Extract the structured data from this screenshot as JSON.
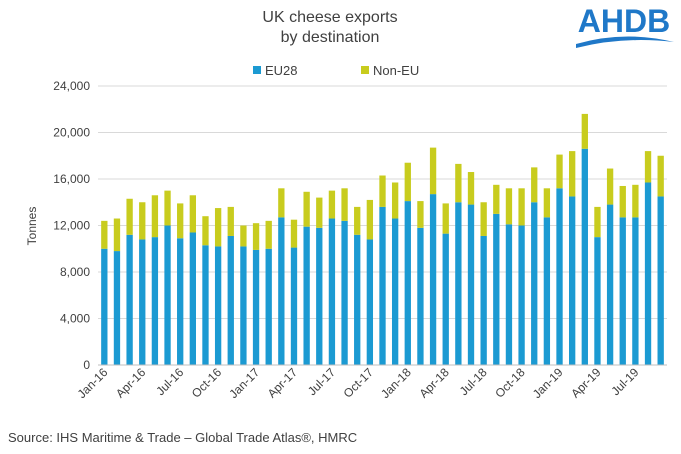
{
  "chart_data": {
    "type": "bar",
    "stacked": true,
    "title_line1": "UK cheese exports",
    "title_line2": "by destination",
    "ylabel": "Tonnes",
    "xlabel": "",
    "ylim": [
      0,
      24000
    ],
    "yticks": [
      0,
      4000,
      8000,
      12000,
      16000,
      20000,
      24000
    ],
    "ytick_labels": [
      "0",
      "4,000",
      "8,000",
      "12,000",
      "16,000",
      "20,000",
      "24,000"
    ],
    "legend_position": "top-center",
    "gridlines": true,
    "categories": [
      "Jan-16",
      "Feb-16",
      "Mar-16",
      "Apr-16",
      "May-16",
      "Jun-16",
      "Jul-16",
      "Aug-16",
      "Sep-16",
      "Oct-16",
      "Nov-16",
      "Dec-16",
      "Jan-17",
      "Feb-17",
      "Mar-17",
      "Apr-17",
      "May-17",
      "Jun-17",
      "Jul-17",
      "Aug-17",
      "Sep-17",
      "Oct-17",
      "Nov-17",
      "Dec-17",
      "Jan-18",
      "Feb-18",
      "Mar-18",
      "Apr-18",
      "May-18",
      "Jun-18",
      "Jul-18",
      "Aug-18",
      "Sep-18",
      "Oct-18",
      "Nov-18",
      "Dec-18",
      "Jan-19",
      "Feb-19",
      "Mar-19",
      "Apr-19",
      "May-19",
      "Jun-19",
      "Jul-19",
      "Aug-19",
      "Sep-19"
    ],
    "visible_tick_labels": [
      "Jan-16",
      "Apr-16",
      "Jul-16",
      "Oct-16",
      "Jan-17",
      "Apr-17",
      "Jul-17",
      "Oct-17",
      "Jan-18",
      "Apr-18",
      "Jul-18",
      "Oct-18",
      "Jan-19",
      "Apr-19",
      "Jul-19"
    ],
    "series": [
      {
        "name": "EU28",
        "color": "#1B9AD2",
        "values": [
          10000,
          9800,
          11200,
          10800,
          11000,
          12000,
          10900,
          11400,
          10300,
          10200,
          11100,
          10200,
          9900,
          10000,
          12700,
          10100,
          11900,
          11800,
          12600,
          12400,
          11200,
          10800,
          13600,
          12600,
          14100,
          11800,
          14700,
          11300,
          14000,
          13800,
          11100,
          13000,
          12100,
          12000,
          14000,
          12700,
          15200,
          14500,
          18600,
          11000,
          13800,
          12700,
          12700,
          15700,
          14500
        ]
      },
      {
        "name": "Non-EU",
        "color": "#C8CC1E",
        "values": [
          2400,
          2800,
          3100,
          3200,
          3600,
          3000,
          3000,
          3200,
          2500,
          3300,
          2500,
          1800,
          2300,
          2400,
          2500,
          2400,
          3000,
          2600,
          2400,
          2800,
          2400,
          3400,
          2700,
          3100,
          3300,
          2300,
          4000,
          2600,
          3300,
          2800,
          2900,
          2500,
          3100,
          3200,
          3000,
          2500,
          2900,
          3900,
          3000,
          2600,
          3100,
          2700,
          2800,
          2700,
          3500
        ]
      }
    ]
  },
  "logo": {
    "text": "AHDB",
    "color": "#1F78C8"
  },
  "footer": {
    "source": "Source: IHS Maritime & Trade – Global Trade Atlas®, HMRC"
  }
}
